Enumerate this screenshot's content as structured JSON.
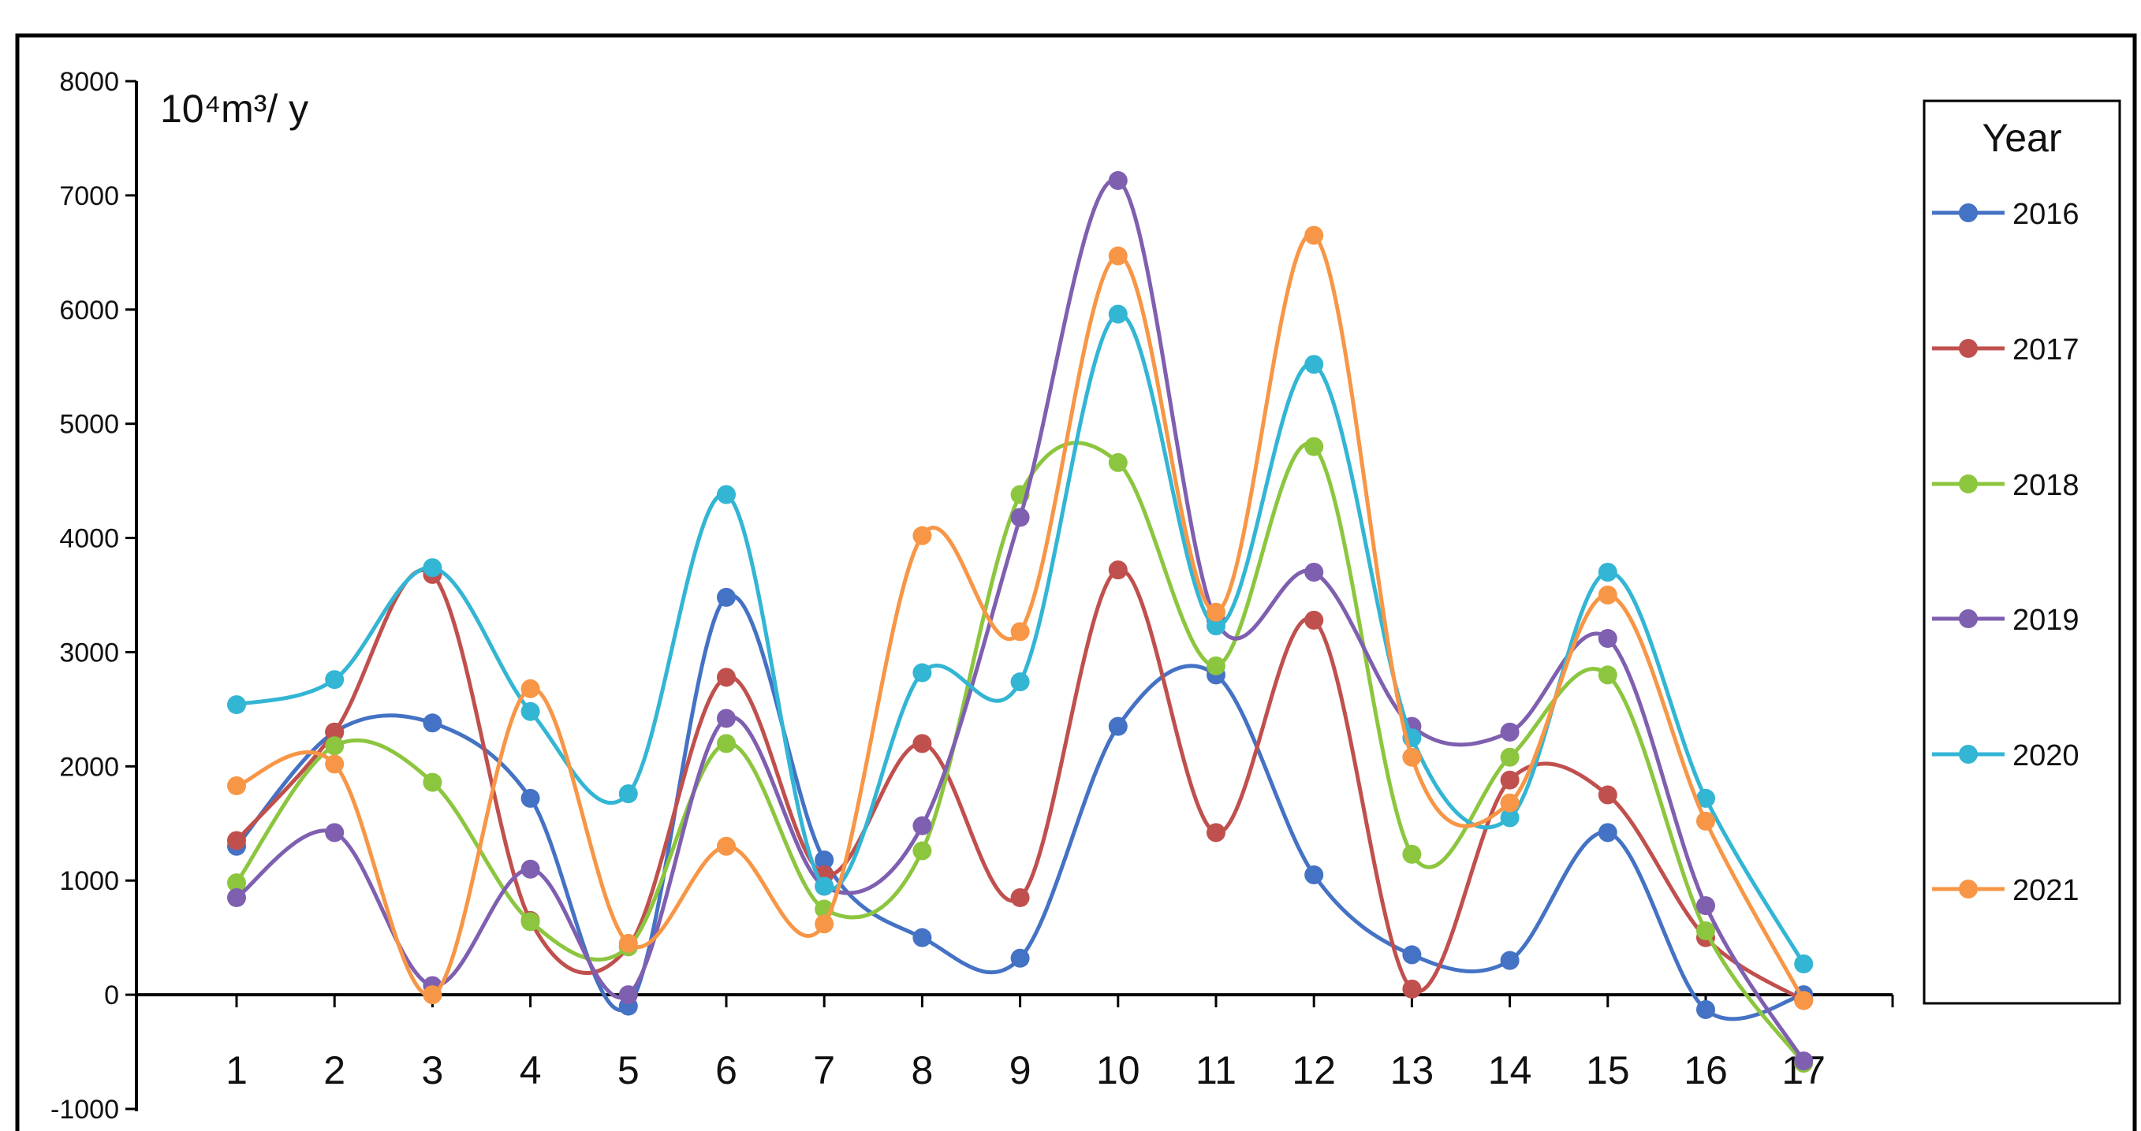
{
  "chart_data": {
    "type": "line",
    "smooth": true,
    "title": "",
    "xlabel": "",
    "ylabel": "",
    "unit_label": "10⁴m³/ y",
    "legend_title": "Year",
    "legend_position": "right",
    "categories": [
      "1",
      "2",
      "3",
      "4",
      "5",
      "6",
      "7",
      "8",
      "9",
      "10",
      "11",
      "12",
      "13",
      "14",
      "15",
      "16",
      "17"
    ],
    "ylim": [
      -1000,
      8000
    ],
    "yticks": [
      -1000,
      0,
      1000,
      2000,
      3000,
      4000,
      5000,
      6000,
      7000,
      8000
    ],
    "grid": false,
    "series": [
      {
        "name": "2016",
        "color": "#4472c4",
        "values": [
          1300,
          2300,
          2380,
          1720,
          -100,
          3480,
          1180,
          500,
          320,
          2350,
          2800,
          1050,
          350,
          300,
          1420,
          -130,
          0
        ]
      },
      {
        "name": "2017",
        "color": "#c0504d",
        "values": [
          1350,
          2300,
          3680,
          650,
          420,
          2780,
          1050,
          2200,
          850,
          3720,
          1420,
          3280,
          50,
          1880,
          1750,
          500,
          -50
        ]
      },
      {
        "name": "2018",
        "color": "#8cc63f",
        "values": [
          980,
          2180,
          1860,
          640,
          420,
          2200,
          750,
          1260,
          4380,
          4660,
          2880,
          4800,
          1230,
          2080,
          2800,
          560,
          -600
        ]
      },
      {
        "name": "2019",
        "color": "#7f5fb0",
        "values": [
          850,
          1420,
          80,
          1100,
          0,
          2420,
          950,
          1480,
          4180,
          7130,
          3280,
          3700,
          2350,
          2300,
          3120,
          780,
          -580
        ]
      },
      {
        "name": "2020",
        "color": "#33b5d4",
        "values": [
          2540,
          2760,
          3740,
          2480,
          1760,
          4380,
          950,
          2820,
          2740,
          5960,
          3230,
          5520,
          2250,
          1550,
          3700,
          1720,
          270
        ]
      },
      {
        "name": "2021",
        "color": "#f79646",
        "values": [
          1830,
          2020,
          0,
          2680,
          450,
          1300,
          620,
          4020,
          3180,
          6470,
          3350,
          6650,
          2080,
          1680,
          3500,
          1520,
          -50
        ]
      }
    ]
  }
}
